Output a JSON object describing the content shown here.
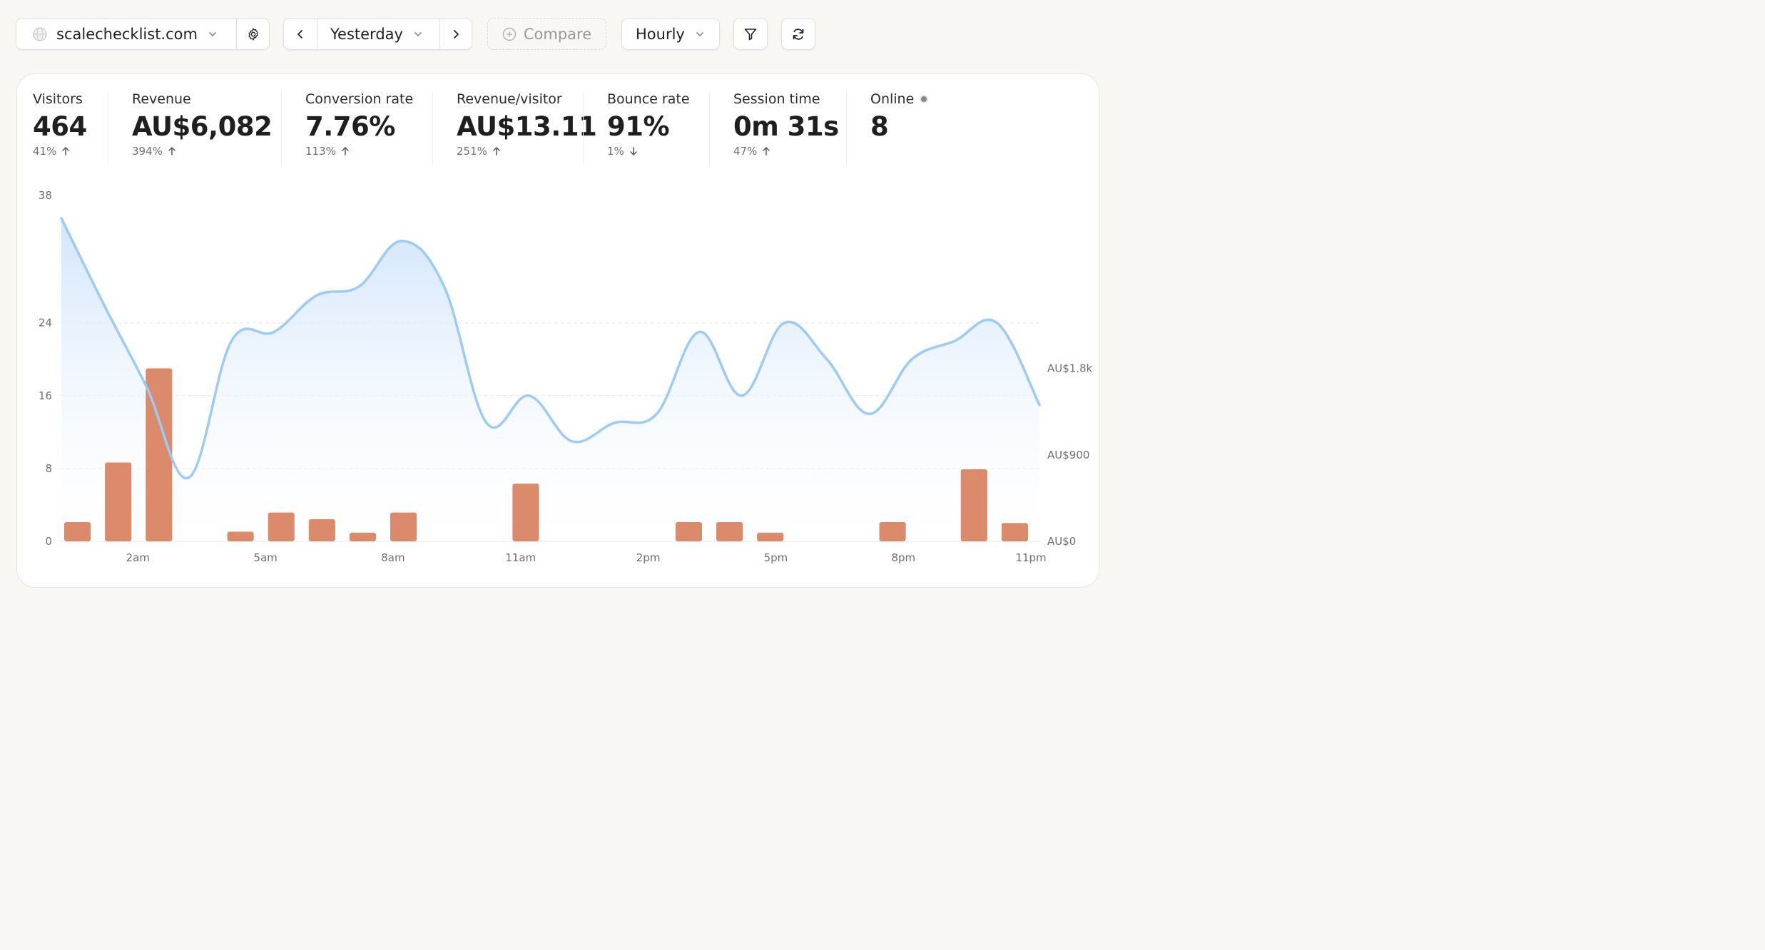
{
  "toolbar": {
    "site": "scalechecklist.com",
    "period": "Yesterday",
    "compare": "Compare",
    "granularity": "Hourly"
  },
  "stats": [
    {
      "title": "Visitors",
      "value": "464",
      "change": "41%",
      "direction": "up"
    },
    {
      "title": "Revenue",
      "value": "AU$6,082",
      "change": "394%",
      "direction": "up"
    },
    {
      "title": "Conversion rate",
      "value": "7.76%",
      "change": "113%",
      "direction": "up"
    },
    {
      "title": "Revenue/visitor",
      "value": "AU$13.11",
      "change": "251%",
      "direction": "up"
    },
    {
      "title": "Bounce rate",
      "value": "91%",
      "change": "1%",
      "direction": "down"
    },
    {
      "title": "Session time",
      "value": "0m 31s",
      "change": "47%",
      "direction": "up"
    },
    {
      "title": "Online",
      "value": "8"
    }
  ],
  "colors": {
    "visitors_line": "#9ccbf5",
    "revenue_bar": "#db8a6c",
    "accent_dot": "#858c85"
  },
  "chart_data": {
    "type": "bar",
    "x": [
      0,
      1,
      2,
      3,
      4,
      5,
      6,
      7,
      8,
      9,
      10,
      11,
      12,
      13,
      14,
      15,
      16,
      17,
      18,
      19,
      20,
      21,
      22,
      23
    ],
    "x_tick_labels": [
      {
        "x": 2,
        "label": "2am"
      },
      {
        "x": 5,
        "label": "5am"
      },
      {
        "x": 8,
        "label": "8am"
      },
      {
        "x": 11,
        "label": "11am"
      },
      {
        "x": 14,
        "label": "2pm"
      },
      {
        "x": 17,
        "label": "5pm"
      },
      {
        "x": 20,
        "label": "8pm"
      },
      {
        "x": 23,
        "label": "11pm"
      }
    ],
    "series": [
      {
        "type": "line",
        "axis": "left",
        "values": [
          35.5,
          26,
          17,
          7,
          22,
          23,
          27,
          28,
          33,
          28,
          13,
          16,
          11,
          13,
          14,
          23,
          16,
          24,
          20,
          14,
          20,
          22,
          24,
          15
        ]
      },
      {
        "type": "bar",
        "axis": "right",
        "values": [
          200,
          820,
          1800,
          0,
          100,
          300,
          230,
          90,
          300,
          0,
          0,
          600,
          0,
          0,
          0,
          200,
          200,
          90,
          0,
          0,
          200,
          0,
          750,
          190
        ]
      }
    ],
    "y_left": {
      "ylim": [
        0,
        38
      ],
      "ticks": [
        0,
        8,
        16,
        24,
        38
      ]
    },
    "y_right": {
      "ylim": [
        0,
        3600
      ],
      "ticks": [
        {
          "v": 0,
          "label": "AU$0"
        },
        {
          "v": 900,
          "label": "AU$900"
        },
        {
          "v": 1800,
          "label": "AU$1.8k"
        }
      ]
    }
  }
}
